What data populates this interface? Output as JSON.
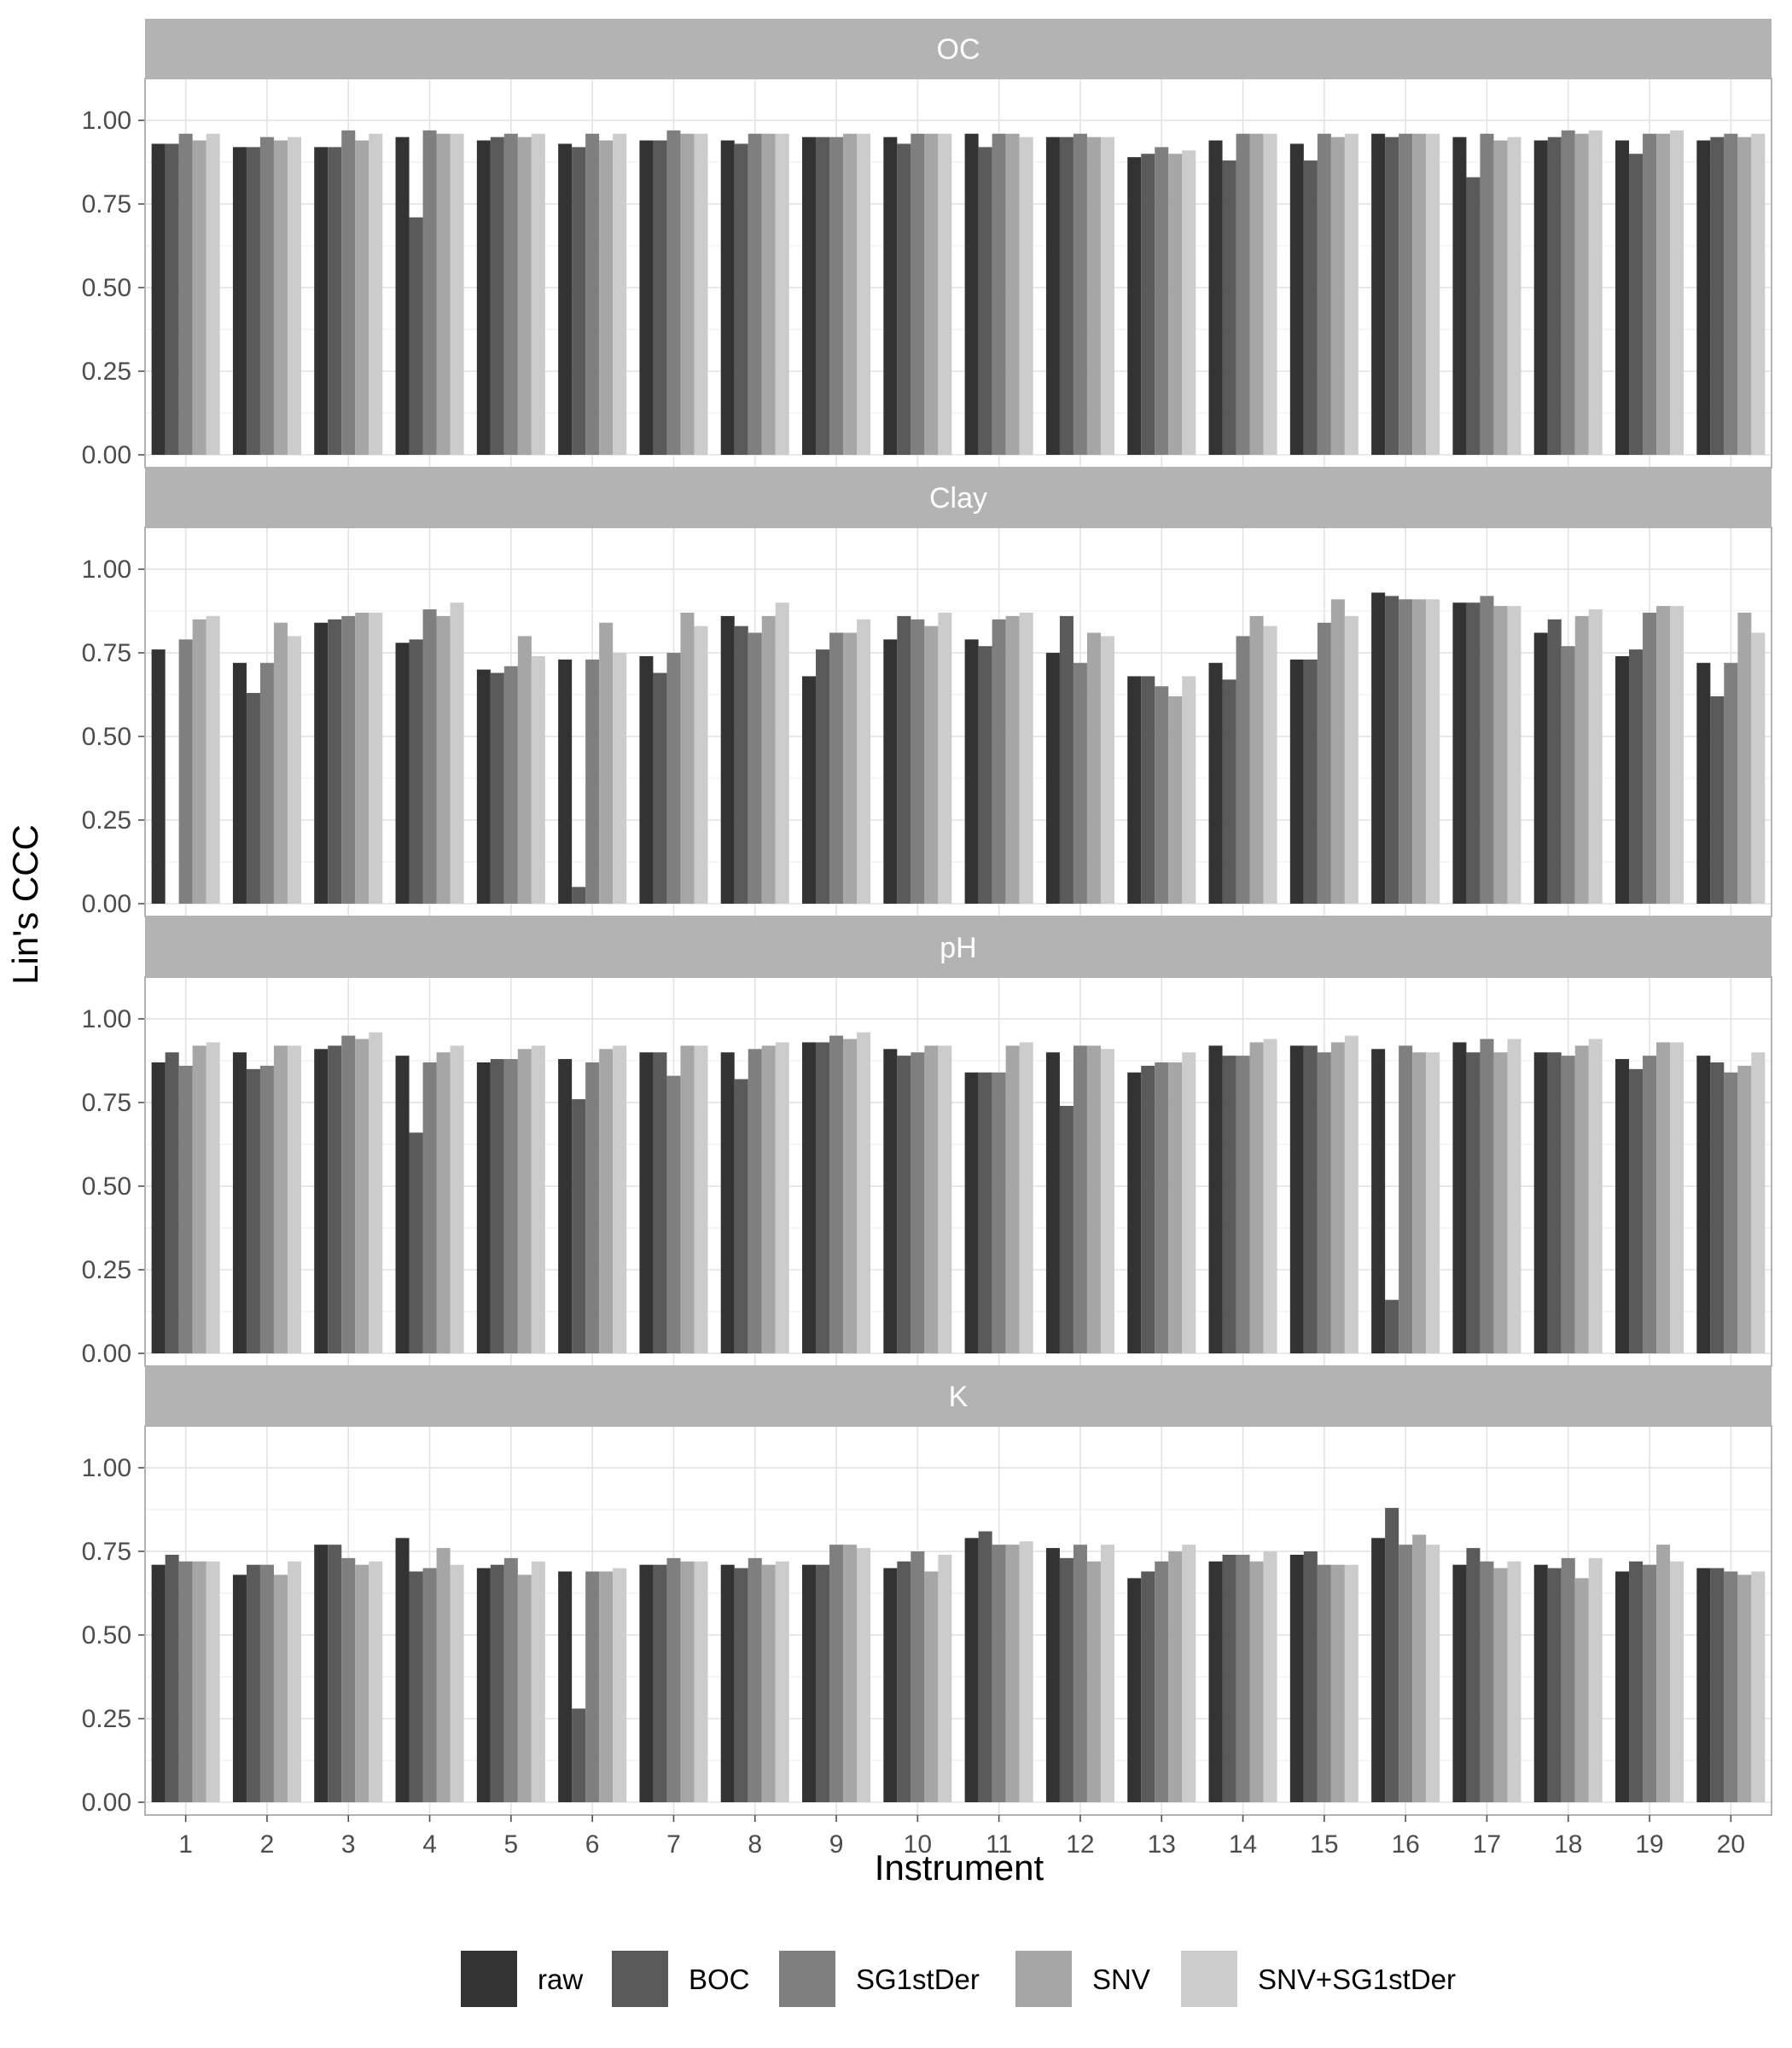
{
  "chart_data": {
    "type": "bar",
    "xlabel": "Instrument",
    "ylabel": "Lin's CCC",
    "ylim": [
      0,
      1.12
    ],
    "yticks": [
      "0.00",
      "0.25",
      "0.50",
      "0.75",
      "1.00"
    ],
    "categories": [
      "1",
      "2",
      "3",
      "4",
      "5",
      "6",
      "7",
      "8",
      "9",
      "10",
      "11",
      "12",
      "13",
      "14",
      "15",
      "16",
      "17",
      "18",
      "19",
      "20"
    ],
    "grid": "on",
    "legend_position": "bottom",
    "series_colors": {
      "raw": "#333333",
      "BOC": "#5a5a5a",
      "SG1stDer": "#7f7f7f",
      "SNV": "#a6a6a6",
      "SNV+SG1stDer": "#cccccc"
    },
    "legend": [
      "raw",
      "BOC",
      "SG1stDer",
      "SNV",
      "SNV+SG1stDer"
    ],
    "panels": [
      {
        "title": "OC",
        "series": [
          {
            "name": "raw",
            "values": [
              0.93,
              0.92,
              0.92,
              0.95,
              0.94,
              0.93,
              0.94,
              0.94,
              0.95,
              0.95,
              0.96,
              0.95,
              0.89,
              0.94,
              0.93,
              0.96,
              0.95,
              0.94,
              0.94,
              0.94
            ]
          },
          {
            "name": "BOC",
            "values": [
              0.93,
              0.92,
              0.92,
              0.71,
              0.95,
              0.92,
              0.94,
              0.93,
              0.95,
              0.93,
              0.92,
              0.95,
              0.9,
              0.88,
              0.88,
              0.95,
              0.83,
              0.95,
              0.9,
              0.95
            ]
          },
          {
            "name": "SG1stDer",
            "values": [
              0.96,
              0.95,
              0.97,
              0.97,
              0.96,
              0.96,
              0.97,
              0.96,
              0.95,
              0.96,
              0.96,
              0.96,
              0.92,
              0.96,
              0.96,
              0.96,
              0.96,
              0.97,
              0.96,
              0.96
            ]
          },
          {
            "name": "SNV",
            "values": [
              0.94,
              0.94,
              0.94,
              0.96,
              0.95,
              0.94,
              0.96,
              0.96,
              0.96,
              0.96,
              0.96,
              0.95,
              0.9,
              0.96,
              0.95,
              0.96,
              0.94,
              0.96,
              0.96,
              0.95
            ]
          },
          {
            "name": "SNV+SG1stDer",
            "values": [
              0.96,
              0.95,
              0.96,
              0.96,
              0.96,
              0.96,
              0.96,
              0.96,
              0.96,
              0.96,
              0.95,
              0.95,
              0.91,
              0.96,
              0.96,
              0.96,
              0.95,
              0.97,
              0.97,
              0.96
            ]
          }
        ]
      },
      {
        "title": "Clay",
        "series": [
          {
            "name": "raw",
            "values": [
              0.76,
              0.72,
              0.84,
              0.78,
              0.7,
              0.73,
              0.74,
              0.86,
              0.68,
              0.79,
              0.79,
              0.75,
              0.68,
              0.72,
              0.73,
              0.93,
              0.9,
              0.81,
              0.74,
              0.72
            ]
          },
          {
            "name": "BOC",
            "values": [
              0.0,
              0.63,
              0.85,
              0.79,
              0.69,
              0.05,
              0.69,
              0.83,
              0.76,
              0.86,
              0.77,
              0.86,
              0.68,
              0.67,
              0.73,
              0.92,
              0.9,
              0.85,
              0.76,
              0.62
            ]
          },
          {
            "name": "SG1stDer",
            "values": [
              0.79,
              0.72,
              0.86,
              0.88,
              0.71,
              0.73,
              0.75,
              0.81,
              0.81,
              0.85,
              0.85,
              0.72,
              0.65,
              0.8,
              0.84,
              0.91,
              0.92,
              0.77,
              0.87,
              0.72
            ]
          },
          {
            "name": "SNV",
            "values": [
              0.85,
              0.84,
              0.87,
              0.86,
              0.8,
              0.84,
              0.87,
              0.86,
              0.81,
              0.83,
              0.86,
              0.81,
              0.62,
              0.86,
              0.91,
              0.91,
              0.89,
              0.86,
              0.89,
              0.87
            ]
          },
          {
            "name": "SNV+SG1stDer",
            "values": [
              0.86,
              0.8,
              0.87,
              0.9,
              0.74,
              0.75,
              0.83,
              0.9,
              0.85,
              0.87,
              0.87,
              0.8,
              0.68,
              0.83,
              0.86,
              0.91,
              0.89,
              0.88,
              0.89,
              0.81
            ]
          }
        ]
      },
      {
        "title": "pH",
        "series": [
          {
            "name": "raw",
            "values": [
              0.87,
              0.9,
              0.91,
              0.89,
              0.87,
              0.88,
              0.9,
              0.9,
              0.93,
              0.91,
              0.84,
              0.9,
              0.84,
              0.92,
              0.92,
              0.91,
              0.93,
              0.9,
              0.88,
              0.89
            ]
          },
          {
            "name": "BOC",
            "values": [
              0.9,
              0.85,
              0.92,
              0.66,
              0.88,
              0.76,
              0.9,
              0.82,
              0.93,
              0.89,
              0.84,
              0.74,
              0.86,
              0.89,
              0.92,
              0.16,
              0.9,
              0.9,
              0.85,
              0.87
            ]
          },
          {
            "name": "SG1stDer",
            "values": [
              0.86,
              0.86,
              0.95,
              0.87,
              0.88,
              0.87,
              0.83,
              0.91,
              0.95,
              0.9,
              0.84,
              0.92,
              0.87,
              0.89,
              0.9,
              0.92,
              0.94,
              0.89,
              0.89,
              0.84
            ]
          },
          {
            "name": "SNV",
            "values": [
              0.92,
              0.92,
              0.94,
              0.9,
              0.91,
              0.91,
              0.92,
              0.92,
              0.94,
              0.92,
              0.92,
              0.92,
              0.87,
              0.93,
              0.93,
              0.9,
              0.9,
              0.92,
              0.93,
              0.86
            ]
          },
          {
            "name": "SNV+SG1stDer",
            "values": [
              0.93,
              0.92,
              0.96,
              0.92,
              0.92,
              0.92,
              0.92,
              0.93,
              0.96,
              0.92,
              0.93,
              0.91,
              0.9,
              0.94,
              0.95,
              0.9,
              0.94,
              0.94,
              0.93,
              0.9
            ]
          }
        ]
      },
      {
        "title": "K",
        "series": [
          {
            "name": "raw",
            "values": [
              0.71,
              0.68,
              0.77,
              0.79,
              0.7,
              0.69,
              0.71,
              0.71,
              0.71,
              0.7,
              0.79,
              0.76,
              0.67,
              0.72,
              0.74,
              0.79,
              0.71,
              0.71,
              0.69,
              0.7
            ]
          },
          {
            "name": "BOC",
            "values": [
              0.74,
              0.71,
              0.77,
              0.69,
              0.71,
              0.28,
              0.71,
              0.7,
              0.71,
              0.72,
              0.81,
              0.73,
              0.69,
              0.74,
              0.75,
              0.88,
              0.76,
              0.7,
              0.72,
              0.7
            ]
          },
          {
            "name": "SG1stDer",
            "values": [
              0.72,
              0.71,
              0.73,
              0.7,
              0.73,
              0.69,
              0.73,
              0.73,
              0.77,
              0.75,
              0.77,
              0.77,
              0.72,
              0.74,
              0.71,
              0.77,
              0.72,
              0.73,
              0.71,
              0.69
            ]
          },
          {
            "name": "SNV",
            "values": [
              0.72,
              0.68,
              0.71,
              0.76,
              0.68,
              0.69,
              0.72,
              0.71,
              0.77,
              0.69,
              0.77,
              0.72,
              0.75,
              0.72,
              0.71,
              0.8,
              0.7,
              0.67,
              0.77,
              0.68
            ]
          },
          {
            "name": "SNV+SG1stDer",
            "values": [
              0.72,
              0.72,
              0.72,
              0.71,
              0.72,
              0.7,
              0.72,
              0.72,
              0.76,
              0.74,
              0.78,
              0.77,
              0.77,
              0.75,
              0.71,
              0.77,
              0.72,
              0.73,
              0.72,
              0.69
            ]
          }
        ]
      }
    ]
  }
}
